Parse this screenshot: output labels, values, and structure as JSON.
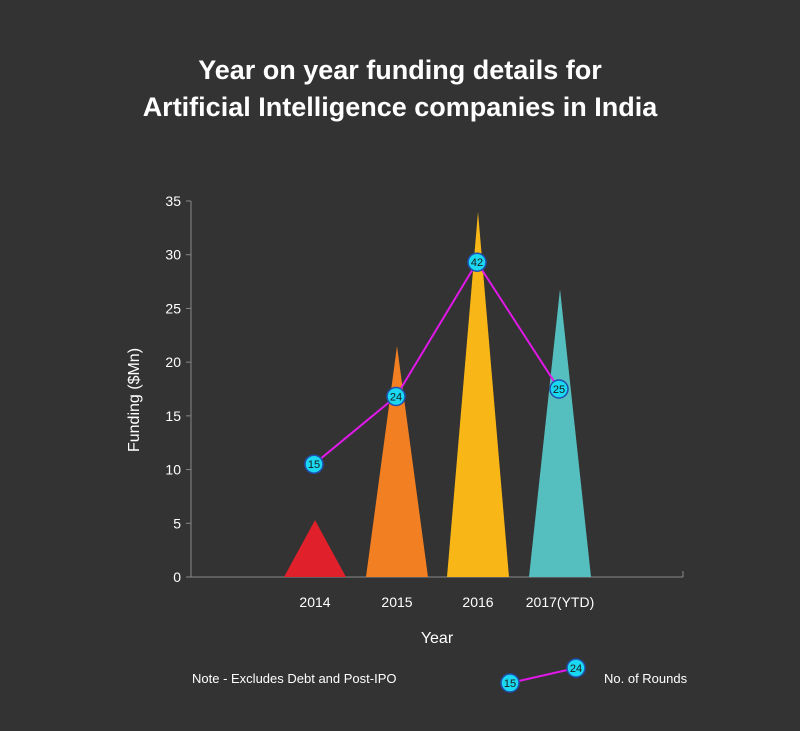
{
  "title_line1": "Year on year funding details for",
  "title_line2": "Artificial Intelligence companies in India",
  "note": "Note - Excludes Debt and Post-IPO",
  "colors": {
    "background": "#333333",
    "axis": "#888888",
    "line": "#e018e8",
    "marker_fill": "#1ad8f2",
    "marker_stroke": "#1f4fb0",
    "marker_text": "#1a1a1a"
  },
  "legend": {
    "label": "No. of Rounds",
    "sample_values": [
      "15",
      "24"
    ]
  },
  "chart_data": {
    "type": "bar",
    "bar_shape": "triangle",
    "categories": [
      "2014",
      "2015",
      "2016",
      "2017(YTD)"
    ],
    "xlabel": "Year",
    "ylabel": "Funding ($Mn)",
    "ylim": [
      0,
      35
    ],
    "yticks": [
      0,
      5,
      10,
      15,
      20,
      25,
      30,
      35
    ],
    "grid": false,
    "series": [
      {
        "name": "Funding",
        "values": [
          5.3,
          21.5,
          34.0,
          26.8
        ],
        "colors": [
          "#e0202a",
          "#f27f22",
          "#f8b716",
          "#55bfbf"
        ]
      },
      {
        "name": "No. of Rounds",
        "type": "line",
        "values": [
          10.5,
          16.8,
          29.3,
          17.5
        ],
        "labels": [
          "15",
          "24",
          "42",
          "25"
        ]
      }
    ]
  }
}
